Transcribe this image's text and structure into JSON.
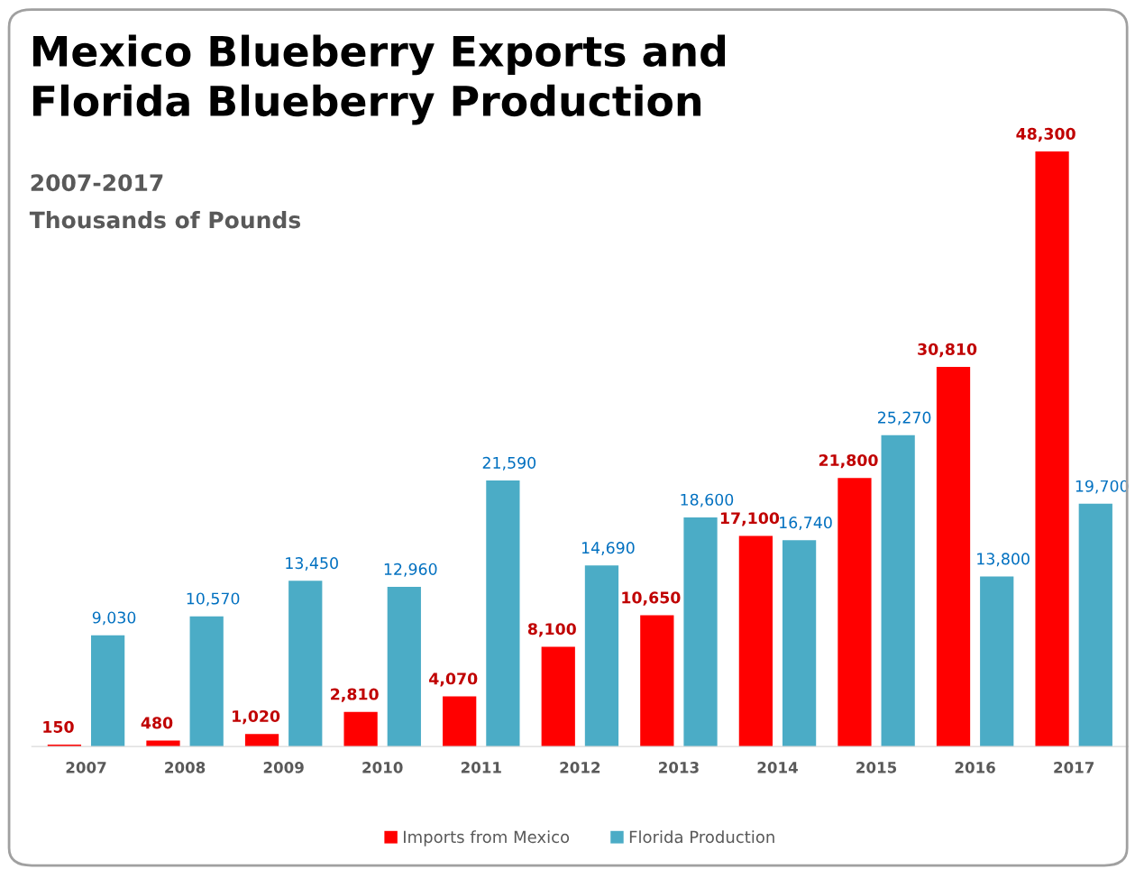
{
  "chart_data": {
    "type": "bar",
    "title": "Mexico Blueberry Exports and\nFlorida Blueberry Production",
    "subtitle": "2007-2017\nThousands of Pounds",
    "categories": [
      "2007",
      "2008",
      "2009",
      "2010",
      "2011",
      "2012",
      "2013",
      "2014",
      "2015",
      "2016",
      "2017"
    ],
    "series": [
      {
        "name": "Imports from Mexico",
        "color": "#ff0000",
        "values": [
          150,
          480,
          1020,
          2810,
          4070,
          8100,
          10650,
          17100,
          21800,
          30810,
          48300
        ],
        "value_labels": [
          "150",
          "480",
          "1,020",
          "2,810",
          "4,070",
          "8,100",
          "10,650",
          "17,100",
          "21,800",
          "30,810",
          "48,300"
        ]
      },
      {
        "name": "Florida Production",
        "color": "#4bacc6",
        "values": [
          9030,
          10570,
          13450,
          12960,
          21590,
          14690,
          18600,
          16740,
          25270,
          13800,
          19700
        ],
        "value_labels": [
          "9,030",
          "10,570",
          "13,450",
          "12,960",
          "21,590",
          "14,690",
          "18,600",
          "16,740",
          "25,270",
          "13,800",
          "19,700"
        ]
      }
    ],
    "legend": "bottom",
    "tick_labels": "x"
  }
}
